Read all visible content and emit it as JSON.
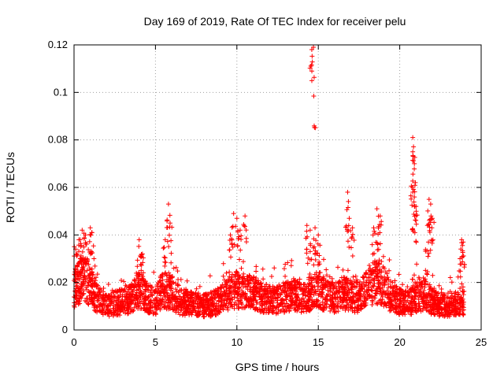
{
  "chart_data": {
    "type": "scatter",
    "title": "Day 169 of 2019, Rate Of TEC Index for receiver pelu",
    "xlabel": "GPS time / hours",
    "ylabel": "ROTI / TECUs",
    "xlim": [
      0,
      25
    ],
    "ylim": [
      0,
      0.12
    ],
    "grid": true,
    "marker": "plus",
    "series_color": "#ff0000",
    "x_ticks": [
      {
        "value": 0,
        "label": "0"
      },
      {
        "value": 5,
        "label": "5"
      },
      {
        "value": 10,
        "label": "10"
      },
      {
        "value": 15,
        "label": "15"
      },
      {
        "value": 20,
        "label": "20"
      },
      {
        "value": 25,
        "label": "25"
      }
    ],
    "y_ticks": [
      {
        "value": 0,
        "label": "0"
      },
      {
        "value": 0.02,
        "label": "0.02"
      },
      {
        "value": 0.04,
        "label": "0.04"
      },
      {
        "value": 0.06,
        "label": "0.06"
      },
      {
        "value": 0.08,
        "label": "0.08"
      },
      {
        "value": 0.1,
        "label": "0.1"
      },
      {
        "value": 0.12,
        "label": "0.12"
      }
    ],
    "series": [
      {
        "name": "ROTI",
        "baseline": [
          [
            0.0,
            0.02
          ],
          [
            0.4,
            0.025
          ],
          [
            0.8,
            0.024
          ],
          [
            1.2,
            0.018
          ],
          [
            1.6,
            0.014
          ],
          [
            2.0,
            0.012
          ],
          [
            2.5,
            0.013
          ],
          [
            3.0,
            0.014
          ],
          [
            3.5,
            0.015
          ],
          [
            4.0,
            0.02
          ],
          [
            4.5,
            0.016
          ],
          [
            5.0,
            0.014
          ],
          [
            5.5,
            0.02
          ],
          [
            6.0,
            0.019
          ],
          [
            6.5,
            0.014
          ],
          [
            7.0,
            0.013
          ],
          [
            7.5,
            0.013
          ],
          [
            8.0,
            0.012
          ],
          [
            8.5,
            0.013
          ],
          [
            9.0,
            0.015
          ],
          [
            9.5,
            0.018
          ],
          [
            10.0,
            0.02
          ],
          [
            10.5,
            0.019
          ],
          [
            11.0,
            0.018
          ],
          [
            11.5,
            0.016
          ],
          [
            12.0,
            0.015
          ],
          [
            12.5,
            0.015
          ],
          [
            13.0,
            0.016
          ],
          [
            13.5,
            0.017
          ],
          [
            14.0,
            0.016
          ],
          [
            14.5,
            0.018
          ],
          [
            15.0,
            0.02
          ],
          [
            15.5,
            0.017
          ],
          [
            16.0,
            0.016
          ],
          [
            16.5,
            0.018
          ],
          [
            17.0,
            0.017
          ],
          [
            17.5,
            0.016
          ],
          [
            18.0,
            0.02
          ],
          [
            18.5,
            0.024
          ],
          [
            19.0,
            0.022
          ],
          [
            19.5,
            0.016
          ],
          [
            20.0,
            0.014
          ],
          [
            20.5,
            0.013
          ],
          [
            21.0,
            0.016
          ],
          [
            21.5,
            0.018
          ],
          [
            22.0,
            0.014
          ],
          [
            22.5,
            0.012
          ],
          [
            23.0,
            0.012
          ],
          [
            23.5,
            0.013
          ],
          [
            23.9,
            0.014
          ]
        ],
        "peaks": [
          [
            0.1,
            0.034
          ],
          [
            0.3,
            0.038
          ],
          [
            0.5,
            0.042
          ],
          [
            0.7,
            0.04
          ],
          [
            1.0,
            0.043
          ],
          [
            1.1,
            0.041
          ],
          [
            4.0,
            0.038
          ],
          [
            4.2,
            0.032
          ],
          [
            5.6,
            0.038
          ],
          [
            5.8,
            0.053
          ],
          [
            5.9,
            0.045
          ],
          [
            9.6,
            0.04
          ],
          [
            9.8,
            0.049
          ],
          [
            10.0,
            0.047
          ],
          [
            10.2,
            0.042
          ],
          [
            10.5,
            0.048
          ],
          [
            14.3,
            0.044
          ],
          [
            14.5,
            0.042
          ],
          [
            14.6,
            0.118
          ],
          [
            14.7,
            0.119
          ],
          [
            14.8,
            0.043
          ],
          [
            15.0,
            0.04
          ],
          [
            16.8,
            0.058
          ],
          [
            16.9,
            0.047
          ],
          [
            17.1,
            0.043
          ],
          [
            18.4,
            0.043
          ],
          [
            18.6,
            0.051
          ],
          [
            18.8,
            0.048
          ],
          [
            20.8,
            0.081
          ],
          [
            20.8,
            0.075
          ],
          [
            20.9,
            0.07
          ],
          [
            20.8,
            0.058
          ],
          [
            20.9,
            0.056
          ],
          [
            21.0,
            0.052
          ],
          [
            21.8,
            0.055
          ],
          [
            21.9,
            0.053
          ],
          [
            22.0,
            0.047
          ],
          [
            21.7,
            0.044
          ],
          [
            23.8,
            0.038
          ],
          [
            23.9,
            0.037
          ],
          [
            23.7,
            0.03
          ]
        ]
      }
    ]
  }
}
